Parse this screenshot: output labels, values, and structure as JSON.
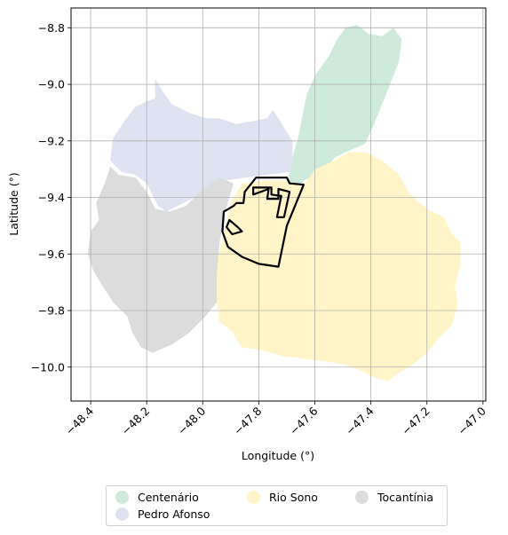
{
  "chart_data": {
    "type": "map",
    "xlabel": "Longitude (°)",
    "ylabel": "Latitude (°)",
    "xlim": [
      -48.47,
      -46.99
    ],
    "ylim": [
      -10.12,
      -8.73
    ],
    "xticks": [
      -48.4,
      -48.2,
      -48.0,
      -47.8,
      -47.6,
      -47.4,
      -47.2,
      -47.0
    ],
    "xtick_labels": [
      "−48.4",
      "−48.2",
      "−48.0",
      "−47.8",
      "−47.6",
      "−47.4",
      "−47.2",
      "−47.0"
    ],
    "yticks": [
      -8.8,
      -9.0,
      -9.2,
      -9.4,
      -9.6,
      -9.8,
      -10.0
    ],
    "ytick_labels": [
      "−8.8",
      "−9.0",
      "−9.2",
      "−9.4",
      "−9.6",
      "−9.8",
      "−10.0"
    ],
    "grid": true,
    "legend_placement": "below",
    "regions": [
      {
        "name": "Centenário",
        "color": "#cdeadb",
        "boundary": [
          [
            -47.695,
            -9.37
          ],
          [
            -47.69,
            -9.29
          ],
          [
            -47.66,
            -9.19
          ],
          [
            -47.63,
            -9.04
          ],
          [
            -47.6,
            -8.97
          ],
          [
            -47.55,
            -8.9
          ],
          [
            -47.52,
            -8.84
          ],
          [
            -47.49,
            -8.8
          ],
          [
            -47.45,
            -8.79
          ],
          [
            -47.41,
            -8.82
          ],
          [
            -47.36,
            -8.83
          ],
          [
            -47.32,
            -8.8
          ],
          [
            -47.29,
            -8.84
          ],
          [
            -47.3,
            -8.92
          ],
          [
            -47.34,
            -9.02
          ],
          [
            -47.38,
            -9.12
          ],
          [
            -47.42,
            -9.21
          ],
          [
            -47.49,
            -9.24
          ],
          [
            -47.53,
            -9.26
          ],
          [
            -47.57,
            -9.31
          ],
          [
            -47.61,
            -9.33
          ],
          [
            -47.64,
            -9.34
          ],
          [
            -47.66,
            -9.37
          ]
        ]
      },
      {
        "name": "Pedro Afonso",
        "color": "#dfe3f1",
        "boundary": [
          [
            -48.33,
            -9.27
          ],
          [
            -48.32,
            -9.19
          ],
          [
            -48.28,
            -9.13
          ],
          [
            -48.24,
            -9.08
          ],
          [
            -48.2,
            -9.06
          ],
          [
            -48.17,
            -9.05
          ],
          [
            -48.17,
            -8.98
          ],
          [
            -48.14,
            -9.03
          ],
          [
            -48.11,
            -9.07
          ],
          [
            -48.05,
            -9.1
          ],
          [
            -47.99,
            -9.12
          ],
          [
            -47.94,
            -9.12
          ],
          [
            -47.88,
            -9.14
          ],
          [
            -47.82,
            -9.13
          ],
          [
            -47.77,
            -9.12
          ],
          [
            -47.75,
            -9.09
          ],
          [
            -47.73,
            -9.12
          ],
          [
            -47.7,
            -9.17
          ],
          [
            -47.68,
            -9.2
          ],
          [
            -47.68,
            -9.28
          ],
          [
            -47.69,
            -9.31
          ],
          [
            -47.77,
            -9.32
          ],
          [
            -47.85,
            -9.33
          ],
          [
            -47.92,
            -9.34
          ],
          [
            -47.98,
            -9.37
          ],
          [
            -48.03,
            -9.4
          ],
          [
            -48.07,
            -9.42
          ],
          [
            -48.13,
            -9.45
          ],
          [
            -48.16,
            -9.43
          ],
          [
            -48.2,
            -9.35
          ],
          [
            -48.24,
            -9.32
          ],
          [
            -48.29,
            -9.31
          ]
        ]
      },
      {
        "name": "Rio Sono",
        "color": "#fff5c8",
        "boundary": [
          [
            -47.86,
            -9.35
          ],
          [
            -47.77,
            -9.34
          ],
          [
            -47.7,
            -9.34
          ],
          [
            -47.64,
            -9.36
          ],
          [
            -47.6,
            -9.3
          ],
          [
            -47.53,
            -9.27
          ],
          [
            -47.48,
            -9.24
          ],
          [
            -47.42,
            -9.24
          ],
          [
            -47.36,
            -9.27
          ],
          [
            -47.3,
            -9.32
          ],
          [
            -47.26,
            -9.39
          ],
          [
            -47.2,
            -9.44
          ],
          [
            -47.14,
            -9.47
          ],
          [
            -47.11,
            -9.53
          ],
          [
            -47.08,
            -9.56
          ],
          [
            -47.08,
            -9.64
          ],
          [
            -47.1,
            -9.71
          ],
          [
            -47.09,
            -9.78
          ],
          [
            -47.11,
            -9.85
          ],
          [
            -47.16,
            -9.9
          ],
          [
            -47.2,
            -9.95
          ],
          [
            -47.25,
            -9.99
          ],
          [
            -47.3,
            -10.02
          ],
          [
            -47.34,
            -10.05
          ],
          [
            -47.38,
            -10.04
          ],
          [
            -47.44,
            -10.01
          ],
          [
            -47.5,
            -9.99
          ],
          [
            -47.56,
            -9.98
          ],
          [
            -47.64,
            -9.97
          ],
          [
            -47.72,
            -9.96
          ],
          [
            -47.79,
            -9.94
          ],
          [
            -47.86,
            -9.93
          ],
          [
            -47.9,
            -9.87
          ],
          [
            -47.94,
            -9.84
          ],
          [
            -47.95,
            -9.77
          ],
          [
            -47.95,
            -9.63
          ],
          [
            -47.93,
            -9.55
          ],
          [
            -47.9,
            -9.42
          ]
        ]
      },
      {
        "name": "Tocantínia",
        "color": "#dcdcdc",
        "boundary": [
          [
            -48.35,
            -9.35
          ],
          [
            -48.33,
            -9.29
          ],
          [
            -48.3,
            -9.32
          ],
          [
            -48.24,
            -9.33
          ],
          [
            -48.2,
            -9.38
          ],
          [
            -48.17,
            -9.44
          ],
          [
            -48.12,
            -9.45
          ],
          [
            -48.06,
            -9.43
          ],
          [
            -48.0,
            -9.37
          ],
          [
            -47.94,
            -9.33
          ],
          [
            -47.89,
            -9.35
          ],
          [
            -47.92,
            -9.45
          ],
          [
            -47.94,
            -9.56
          ],
          [
            -47.95,
            -9.67
          ],
          [
            -47.95,
            -9.77
          ],
          [
            -47.99,
            -9.82
          ],
          [
            -48.05,
            -9.88
          ],
          [
            -48.11,
            -9.92
          ],
          [
            -48.18,
            -9.95
          ],
          [
            -48.22,
            -9.93
          ],
          [
            -48.25,
            -9.88
          ],
          [
            -48.27,
            -9.82
          ],
          [
            -48.32,
            -9.77
          ],
          [
            -48.36,
            -9.71
          ],
          [
            -48.39,
            -9.66
          ],
          [
            -48.41,
            -9.6
          ],
          [
            -48.4,
            -9.52
          ],
          [
            -48.37,
            -9.48
          ],
          [
            -48.38,
            -9.42
          ]
        ]
      }
    ],
    "outlines": [
      [
        [
          -47.88,
          -9.42
        ],
        [
          -47.855,
          -9.42
        ],
        [
          -47.85,
          -9.38
        ],
        [
          -47.81,
          -9.33
        ],
        [
          -47.7,
          -9.33
        ],
        [
          -47.69,
          -9.35
        ],
        [
          -47.64,
          -9.355
        ],
        [
          -47.7,
          -9.5
        ],
        [
          -47.73,
          -9.645
        ],
        [
          -47.8,
          -9.635
        ],
        [
          -47.86,
          -9.61
        ],
        [
          -47.91,
          -9.575
        ],
        [
          -47.93,
          -9.52
        ],
        [
          -47.925,
          -9.45
        ],
        [
          -47.89,
          -9.43
        ]
      ],
      [
        [
          -47.82,
          -9.365
        ],
        [
          -47.755,
          -9.365
        ],
        [
          -47.755,
          -9.39
        ],
        [
          -47.72,
          -9.395
        ],
        [
          -47.735,
          -9.47
        ],
        [
          -47.71,
          -9.47
        ],
        [
          -47.69,
          -9.38
        ],
        [
          -47.73,
          -9.37
        ],
        [
          -47.73,
          -9.405
        ],
        [
          -47.77,
          -9.405
        ],
        [
          -47.765,
          -9.37
        ],
        [
          -47.82,
          -9.39
        ]
      ],
      [
        [
          -47.905,
          -9.48
        ],
        [
          -47.875,
          -9.505
        ],
        [
          -47.86,
          -9.52
        ],
        [
          -47.895,
          -9.53
        ],
        [
          -47.915,
          -9.505
        ]
      ]
    ],
    "legend": [
      "Centenário",
      "Pedro Afonso",
      "Rio Sono",
      "Tocantínia"
    ]
  },
  "legend_columns": [
    [
      "Centenário",
      "Pedro Afonso"
    ],
    [
      "Rio Sono"
    ],
    [
      "Tocantínia"
    ]
  ]
}
